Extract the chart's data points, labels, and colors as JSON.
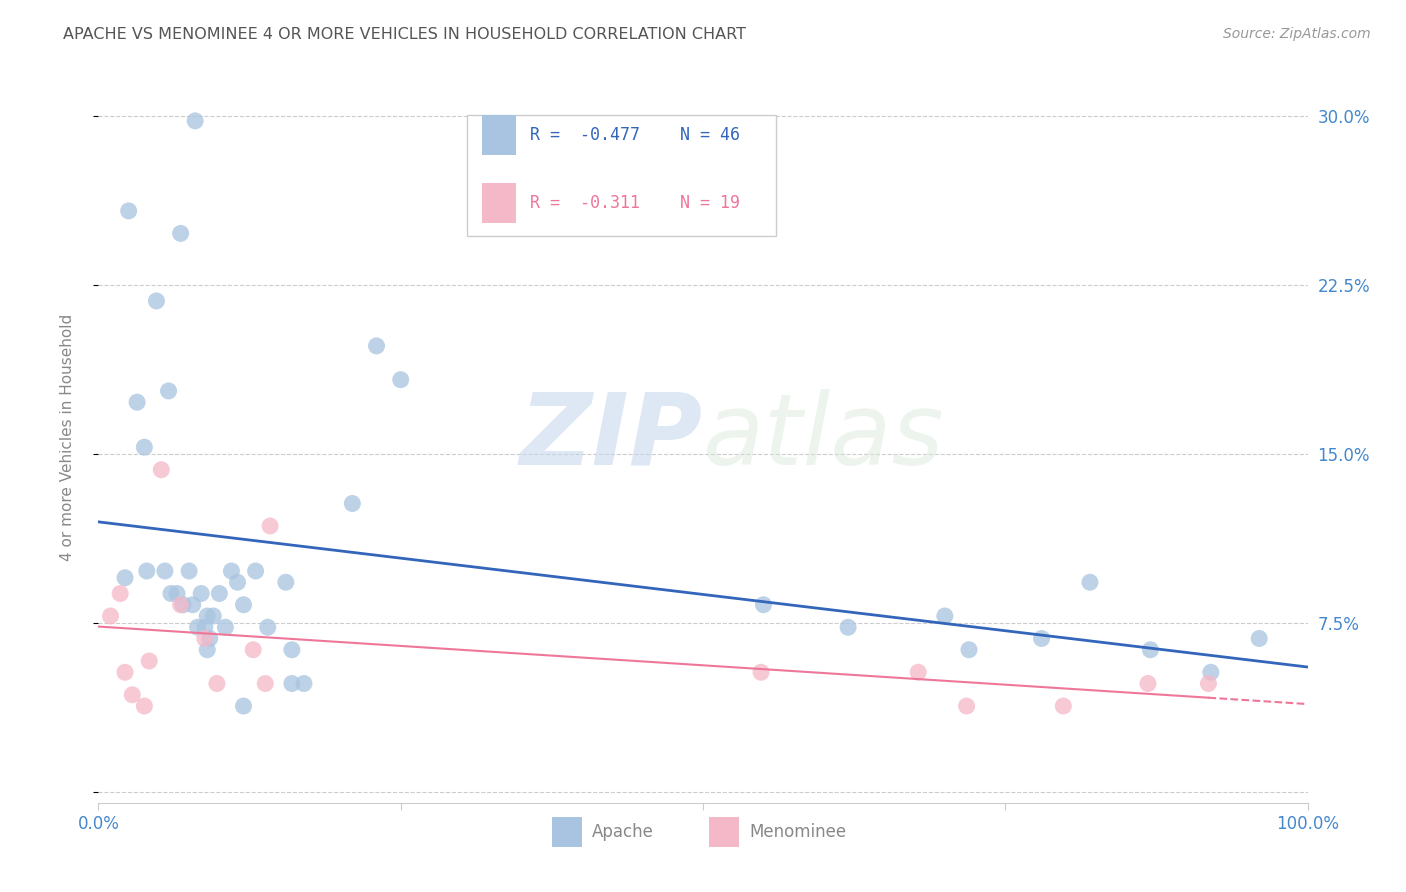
{
  "title": "APACHE VS MENOMINEE 4 OR MORE VEHICLES IN HOUSEHOLD CORRELATION CHART",
  "source": "Source: ZipAtlas.com",
  "ylabel": "4 or more Vehicles in Household",
  "xlim": [
    0.0,
    1.0
  ],
  "ylim": [
    -0.005,
    0.32
  ],
  "yticks": [
    0.0,
    0.075,
    0.15,
    0.225,
    0.3
  ],
  "ytick_labels": [
    "",
    "7.5%",
    "15.0%",
    "22.5%",
    "30.0%"
  ],
  "xticks": [
    0.0,
    0.25,
    0.5,
    0.75,
    1.0
  ],
  "xtick_labels": [
    "0.0%",
    "",
    "",
    "",
    "100.0%"
  ],
  "apache_R": -0.477,
  "apache_N": 46,
  "menominee_R": -0.311,
  "menominee_N": 19,
  "apache_color": "#a8c4e0",
  "menominee_color": "#f5b8c8",
  "apache_line_color": "#3366bb",
  "menominee_line_color": "#ee7799",
  "apache_x": [
    0.022,
    0.04,
    0.055,
    0.06,
    0.065,
    0.07,
    0.075,
    0.078,
    0.082,
    0.085,
    0.088,
    0.09,
    0.092,
    0.095,
    0.1,
    0.105,
    0.11,
    0.115,
    0.12,
    0.13,
    0.14,
    0.155,
    0.16,
    0.17,
    0.21,
    0.23,
    0.25,
    0.025,
    0.032,
    0.038,
    0.048,
    0.058,
    0.068,
    0.08,
    0.09,
    0.12,
    0.16,
    0.55,
    0.62,
    0.7,
    0.72,
    0.78,
    0.82,
    0.87,
    0.92,
    0.96
  ],
  "apache_y": [
    0.095,
    0.098,
    0.098,
    0.088,
    0.088,
    0.083,
    0.098,
    0.083,
    0.073,
    0.088,
    0.073,
    0.078,
    0.068,
    0.078,
    0.088,
    0.073,
    0.098,
    0.093,
    0.083,
    0.098,
    0.073,
    0.093,
    0.063,
    0.048,
    0.128,
    0.198,
    0.183,
    0.258,
    0.173,
    0.153,
    0.218,
    0.178,
    0.248,
    0.298,
    0.063,
    0.038,
    0.048,
    0.083,
    0.073,
    0.078,
    0.063,
    0.068,
    0.093,
    0.063,
    0.053,
    0.068
  ],
  "menominee_x": [
    0.01,
    0.018,
    0.022,
    0.028,
    0.038,
    0.042,
    0.052,
    0.068,
    0.088,
    0.098,
    0.128,
    0.138,
    0.142,
    0.548,
    0.678,
    0.718,
    0.798,
    0.868,
    0.918
  ],
  "menominee_y": [
    0.078,
    0.088,
    0.053,
    0.043,
    0.038,
    0.058,
    0.143,
    0.083,
    0.068,
    0.048,
    0.063,
    0.048,
    0.118,
    0.053,
    0.053,
    0.038,
    0.038,
    0.048,
    0.048
  ],
  "grid_color": "#cccccc",
  "background_color": "#ffffff",
  "title_color": "#555555",
  "axis_label_color": "#888888",
  "tick_color": "#4488cc",
  "source_color": "#999999",
  "legend_R_color_apache": "#3366bb",
  "legend_R_color_menominee": "#ee7799",
  "legend_N_color": "#333333"
}
